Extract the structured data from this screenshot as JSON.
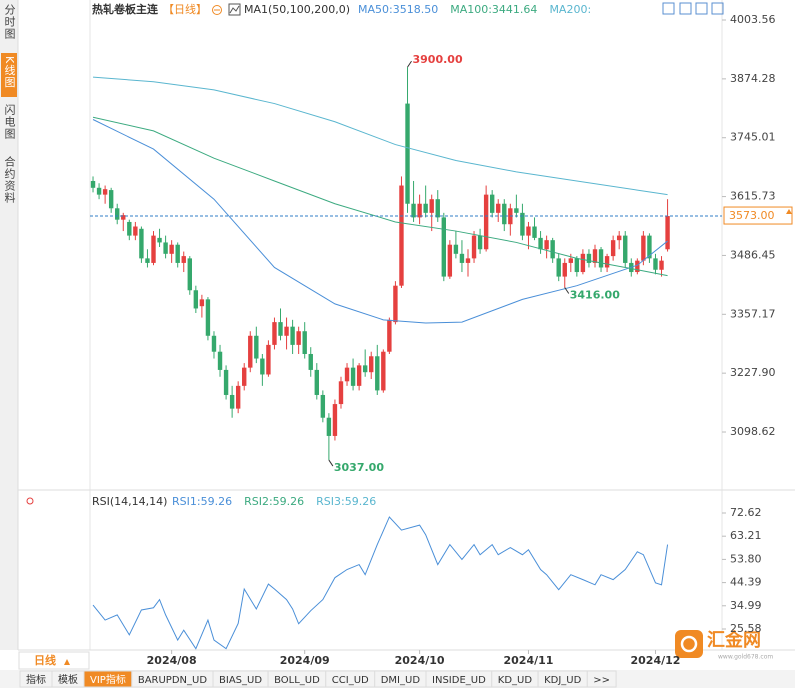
{
  "sidebar": [
    "分时图",
    "K线图",
    "闪电图",
    "合约资料"
  ],
  "chart_data": [
    {
      "type": "candlestick",
      "title": "热轧卷板主连",
      "period": "【日线】",
      "indicator": "MA1(50,100,200,0)",
      "up_color": "#e5403f",
      "down_color": "#35a86c",
      "xlim": [
        -0.5,
        104
      ],
      "ylim": [
        2975.66,
        4003.56
      ],
      "yticks": [
        4003.56,
        3874.28,
        3745.01,
        3615.73,
        3486.45,
        3357.17,
        {
          "value": 3227.9,
          "label": "3227.90"
        },
        3098.62
      ],
      "xticks": [
        {
          "value": 13,
          "label": "2024/08"
        },
        {
          "value": 35,
          "label": "2024/09"
        },
        {
          "value": 54,
          "label": "2024/10"
        },
        {
          "value": 72,
          "label": "2024/11"
        },
        {
          "value": 93,
          "label": "2024/12"
        }
      ],
      "candles": [
        [
          3650,
          3660,
          3625,
          3635
        ],
        [
          3635,
          3645,
          3610,
          3620
        ],
        [
          3620,
          3640,
          3600,
          3632
        ],
        [
          3630,
          3635,
          3580,
          3590
        ],
        [
          3590,
          3600,
          3555,
          3565
        ],
        [
          3565,
          3580,
          3540,
          3575
        ],
        [
          3560,
          3565,
          3520,
          3530
        ],
        [
          3530,
          3560,
          3520,
          3550
        ],
        [
          3545,
          3550,
          3470,
          3480
        ],
        [
          3480,
          3500,
          3460,
          3470
        ],
        [
          3470,
          3540,
          3465,
          3530
        ],
        [
          3525,
          3545,
          3505,
          3515
        ],
        [
          3515,
          3530,
          3480,
          3490
        ],
        [
          3490,
          3520,
          3470,
          3510
        ],
        [
          3510,
          3515,
          3460,
          3470
        ],
        [
          3470,
          3495,
          3450,
          3485
        ],
        [
          3480,
          3485,
          3400,
          3410
        ],
        [
          3410,
          3420,
          3360,
          3370
        ],
        [
          3375,
          3400,
          3350,
          3390
        ],
        [
          3390,
          3395,
          3300,
          3310
        ],
        [
          3310,
          3320,
          3260,
          3275
        ],
        [
          3275,
          3290,
          3220,
          3235
        ],
        [
          3235,
          3245,
          3170,
          3180
        ],
        [
          3180,
          3200,
          3130,
          3150
        ],
        [
          3150,
          3210,
          3140,
          3200
        ],
        [
          3200,
          3250,
          3190,
          3240
        ],
        [
          3240,
          3320,
          3230,
          3310
        ],
        [
          3310,
          3330,
          3250,
          3260
        ],
        [
          3260,
          3270,
          3200,
          3225
        ],
        [
          3225,
          3300,
          3220,
          3290
        ],
        [
          3290,
          3350,
          3280,
          3340
        ],
        [
          3340,
          3370,
          3300,
          3310
        ],
        [
          3310,
          3350,
          3280,
          3330
        ],
        [
          3330,
          3345,
          3270,
          3290
        ],
        [
          3290,
          3330,
          3270,
          3320
        ],
        [
          3320,
          3340,
          3260,
          3270
        ],
        [
          3270,
          3285,
          3220,
          3235
        ],
        [
          3235,
          3250,
          3170,
          3180
        ],
        [
          3180,
          3190,
          3120,
          3130
        ],
        [
          3130,
          3140,
          3037,
          3090
        ],
        [
          3090,
          3170,
          3080,
          3160
        ],
        [
          3160,
          3220,
          3150,
          3210
        ],
        [
          3210,
          3250,
          3200,
          3240
        ],
        [
          3240,
          3260,
          3190,
          3200
        ],
        [
          3200,
          3250,
          3190,
          3245
        ],
        [
          3245,
          3280,
          3220,
          3230
        ],
        [
          3230,
          3275,
          3215,
          3265
        ],
        [
          3265,
          3290,
          3180,
          3190
        ],
        [
          3190,
          3280,
          3185,
          3275
        ],
        [
          3275,
          3350,
          3270,
          3345
        ],
        [
          3340,
          3430,
          3335,
          3420
        ],
        [
          3420,
          3660,
          3415,
          3640
        ],
        [
          3820,
          3900,
          3580,
          3600
        ],
        [
          3600,
          3650,
          3560,
          3570
        ],
        [
          3570,
          3620,
          3555,
          3600
        ],
        [
          3600,
          3640,
          3570,
          3580
        ],
        [
          3580,
          3620,
          3540,
          3610
        ],
        [
          3610,
          3630,
          3560,
          3570
        ],
        [
          3570,
          3580,
          3430,
          3440
        ],
        [
          3440,
          3520,
          3435,
          3510
        ],
        [
          3510,
          3540,
          3480,
          3490
        ],
        [
          3490,
          3520,
          3450,
          3470
        ],
        [
          3470,
          3500,
          3440,
          3480
        ],
        [
          3480,
          3540,
          3470,
          3530
        ],
        [
          3530,
          3545,
          3490,
          3500
        ],
        [
          3500,
          3640,
          3495,
          3620
        ],
        [
          3620,
          3630,
          3570,
          3580
        ],
        [
          3580,
          3610,
          3560,
          3600
        ],
        [
          3600,
          3610,
          3540,
          3555
        ],
        [
          3555,
          3600,
          3530,
          3590
        ],
        [
          3590,
          3620,
          3570,
          3580
        ],
        [
          3580,
          3600,
          3520,
          3530
        ],
        [
          3530,
          3560,
          3500,
          3550
        ],
        [
          3550,
          3570,
          3520,
          3525
        ],
        [
          3525,
          3540,
          3490,
          3500
        ],
        [
          3500,
          3530,
          3480,
          3520
        ],
        [
          3520,
          3525,
          3470,
          3480
        ],
        [
          3480,
          3490,
          3430,
          3440
        ],
        [
          3440,
          3480,
          3416,
          3470
        ],
        [
          3470,
          3490,
          3450,
          3480
        ],
        [
          3480,
          3485,
          3440,
          3450
        ],
        [
          3450,
          3500,
          3445,
          3490
        ],
        [
          3490,
          3500,
          3460,
          3470
        ],
        [
          3470,
          3510,
          3460,
          3500
        ],
        [
          3500,
          3505,
          3450,
          3460
        ],
        [
          3460,
          3490,
          3450,
          3485
        ],
        [
          3485,
          3530,
          3475,
          3520
        ],
        [
          3520,
          3540,
          3500,
          3530
        ],
        [
          3530,
          3540,
          3460,
          3470
        ],
        [
          3470,
          3480,
          3440,
          3450
        ],
        [
          3450,
          3480,
          3445,
          3475
        ],
        [
          3475,
          3540,
          3465,
          3530
        ],
        [
          3530,
          3535,
          3470,
          3480
        ],
        [
          3480,
          3490,
          3445,
          3455
        ],
        [
          3455,
          3485,
          3440,
          3475
        ],
        [
          3500,
          3610,
          3495,
          3573
        ]
      ],
      "series": [
        {
          "name": "MA50:3518.50",
          "color": "#4a8fd8",
          "x": [
            0,
            10,
            20,
            30,
            40,
            48,
            55,
            61,
            71,
            80,
            90,
            95
          ],
          "values": [
            3785,
            3720,
            3610,
            3460,
            3380,
            3345,
            3338,
            3340,
            3390,
            3420,
            3465,
            3518
          ]
        },
        {
          "name": "MA100:3441.64",
          "color": "#3caa80",
          "x": [
            0,
            10,
            20,
            30,
            40,
            50,
            60,
            70,
            80,
            90,
            95
          ],
          "values": [
            3790,
            3760,
            3700,
            3650,
            3600,
            3560,
            3540,
            3515,
            3480,
            3455,
            3442
          ]
        },
        {
          "name": "MA200:",
          "color": "#5ab6cf",
          "x": [
            0,
            10,
            20,
            30,
            40,
            50,
            60,
            70,
            80,
            90,
            95
          ],
          "values": [
            3878,
            3868,
            3850,
            3820,
            3780,
            3730,
            3695,
            3670,
            3650,
            3630,
            3620
          ]
        }
      ],
      "annotations": [
        {
          "x": 52,
          "value": 3900,
          "label": "3900.00",
          "color": "#e5403f"
        },
        {
          "x": 39,
          "value": 3037,
          "label": "3037.00",
          "color": "#35a86c"
        },
        {
          "x": 78,
          "value": 3416,
          "label": "3416.00",
          "color": "#35a86c"
        }
      ],
      "last_price": {
        "value": 3573,
        "label": "3573.00"
      }
    },
    {
      "type": "line",
      "title": "RSI(14,14,14)",
      "xlim": [
        -0.5,
        104
      ],
      "ylim": [
        17.06,
        75.86
      ],
      "yticks": [
        72.62,
        63.21,
        {
          "value": 53.8,
          "label": "53.80"
        },
        44.39,
        34.99,
        25.58
      ],
      "series": [
        {
          "name": "RSI1:59.26",
          "color": "#4a8fd8",
          "x": [
            0,
            2,
            4,
            6,
            8,
            10,
            11,
            12,
            14,
            15,
            17,
            19,
            20,
            22,
            24,
            25,
            27,
            29,
            30,
            32,
            33,
            34,
            36,
            38,
            40,
            42,
            44,
            45,
            47,
            49,
            51,
            54,
            55,
            57,
            59,
            61,
            63,
            64,
            66,
            67,
            69,
            71,
            72,
            74,
            75,
            77,
            79,
            81,
            83,
            84,
            86,
            88,
            90,
            91,
            93,
            94,
            95
          ],
          "values": [
            35.3,
            29.2,
            31.3,
            23.2,
            33.3,
            34.2,
            37.5,
            31.3,
            21.1,
            25.1,
            17.6,
            29.2,
            21.1,
            17.6,
            27.8,
            41.8,
            33.7,
            43.8,
            41.8,
            37.5,
            33.7,
            27.7,
            33.0,
            37.5,
            46.4,
            49.7,
            51.7,
            47.6,
            59.8,
            71.0,
            65.7,
            67.7,
            63.8,
            51.7,
            59.8,
            53.8,
            59.8,
            55.7,
            59.8,
            55.7,
            58.6,
            55.7,
            57.7,
            49.7,
            47.6,
            41.5,
            47.6,
            45.6,
            43.5,
            47.6,
            45.6,
            49.7,
            56.9,
            55.7,
            44.3,
            43.5,
            59.8
          ]
        }
      ],
      "other_legend": [
        {
          "name": "RSI2:59.26",
          "color": "#3caa80"
        },
        {
          "name": "RSI3:59.26",
          "color": "#5ab6cf"
        }
      ]
    }
  ],
  "period_select": "日线",
  "toolbar": [
    "指标",
    "模板",
    "VIP指标",
    "BARUPDN_UD",
    "BIAS_UD",
    "BOLL_UD",
    "CCI_UD",
    "DMI_UD",
    "INSIDE_UD",
    "KD_UD",
    "KDJ_UD",
    ">>"
  ],
  "logo": {
    "name": "汇金网",
    "url": "www.gold678.com"
  }
}
